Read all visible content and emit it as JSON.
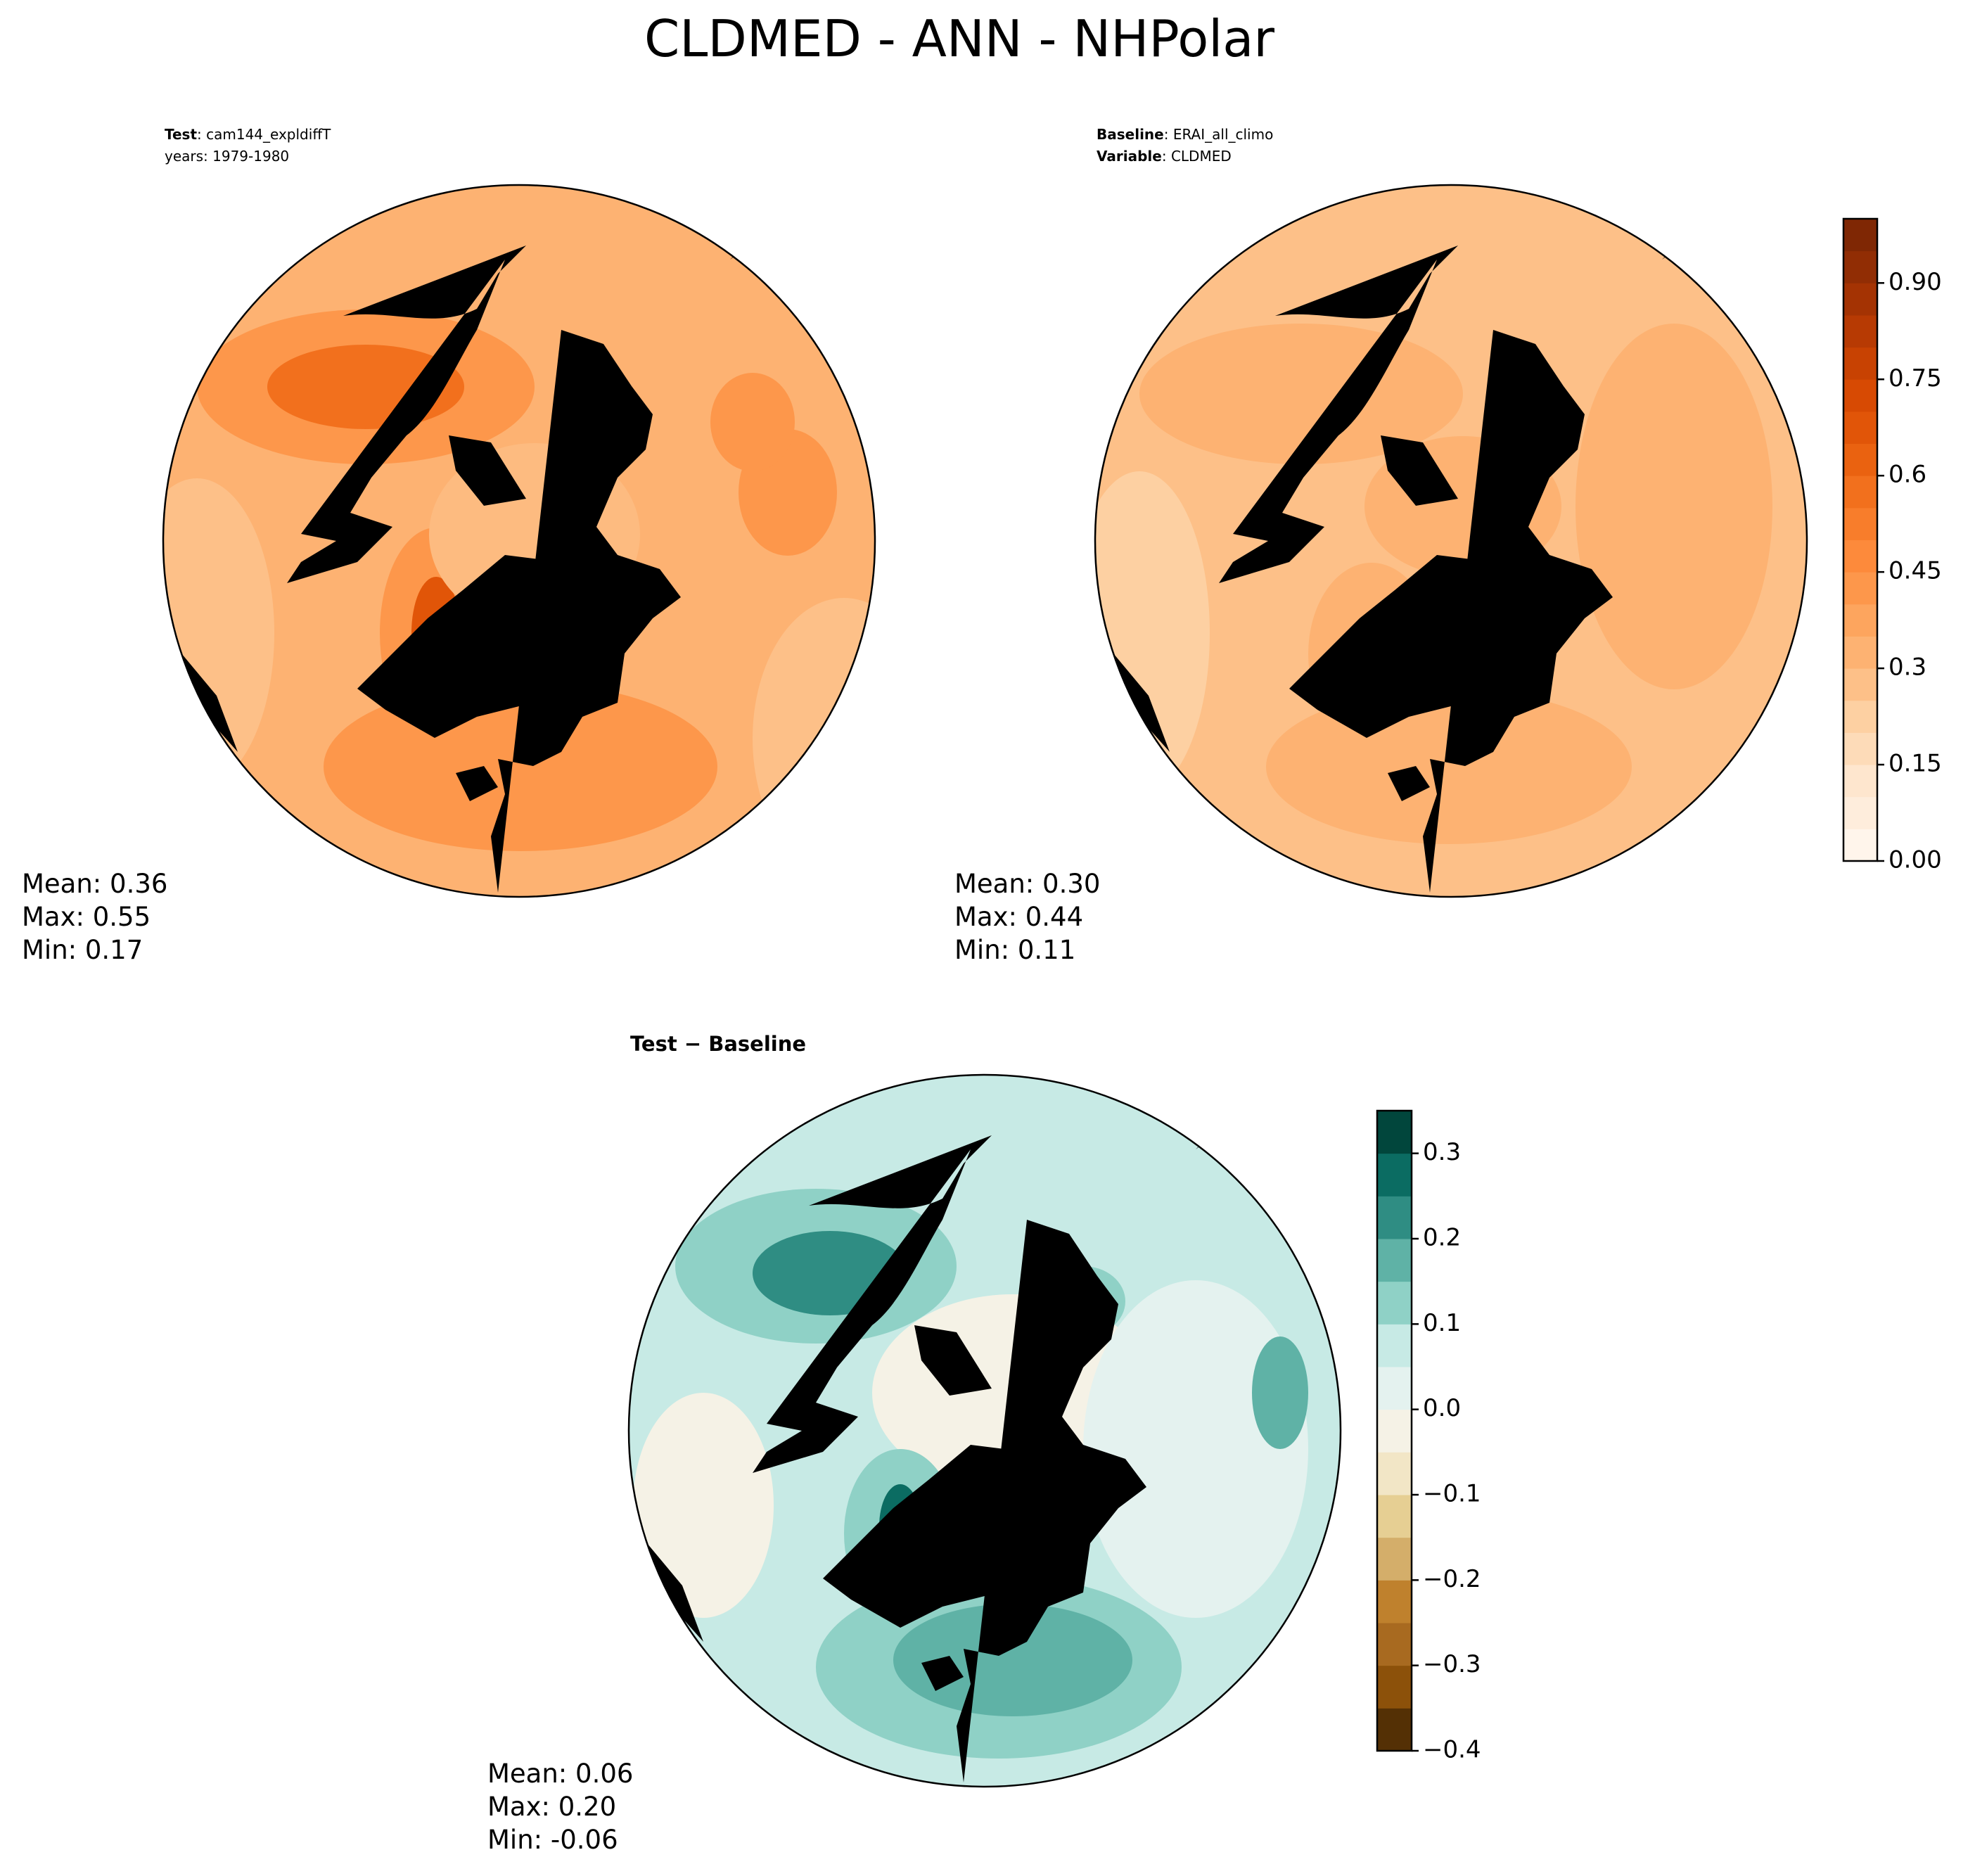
{
  "title": "CLDMED - ANN - NHPolar",
  "panels": [
    {
      "header": [
        {
          "label": "Test",
          "text": ": cam144_expldiffT"
        },
        {
          "text": "years: 1979-1980"
        }
      ],
      "stats": [
        "Mean:  0.36",
        "Max:  0.55",
        "Min:  0.17"
      ]
    },
    {
      "header": [
        {
          "label": "Baseline",
          "text": ": ERAI_all_climo"
        },
        {
          "label": "Variable",
          "text": ": CLDMED"
        }
      ],
      "stats": [
        "Mean:  0.30",
        "Max:  0.44",
        "Min:  0.11"
      ]
    },
    {
      "header": [
        {
          "label": "Test",
          "text": " − Baseline"
        }
      ],
      "stats": [
        "Mean:  0.06",
        "Max:  0.20",
        "Min: -0.06"
      ]
    }
  ],
  "colorbars": [
    {
      "lim": [
        0,
        1.0
      ],
      "ticks": [
        {
          "value": 0,
          "label": "0.00"
        },
        0.15,
        0.3,
        0.45,
        0.6,
        0.75,
        {
          "value": 0.9,
          "label": "0.90"
        }
      ],
      "colors": [
        "#fff5eb",
        "#feeddc",
        "#fee6ce",
        "#fddbb8",
        "#fdd0a2",
        "#fdc088",
        "#fdb272",
        "#fda55e",
        "#fd974b",
        "#fd8a3b",
        "#f87d2b",
        "#f2701d",
        "#ea6210",
        "#e15508",
        "#d74a03",
        "#c84202",
        "#b73a03",
        "#a43303",
        "#912d04",
        "#7f2704"
      ]
    },
    {
      "lim": [
        -0.4,
        0.35
      ],
      "ticks": [
        {
          "value": -0.4,
          "label": "−0.4"
        },
        {
          "value": -0.3,
          "label": "−0.3"
        },
        {
          "value": -0.2,
          "label": "−0.2"
        },
        {
          "value": -0.1,
          "label": "−0.1"
        },
        {
          "value": 0,
          "label": "0.0"
        },
        0.1,
        0.2,
        0.3
      ],
      "colors": [
        "#543005",
        "#8c510a",
        "#a86a20",
        "#bf812d",
        "#d4ae6a",
        "#e6cf93",
        "#f2e6c6",
        "#f5f2e6",
        "#e4f2ef",
        "#c7eae5",
        "#8fd1c6",
        "#5fb2a6",
        "#2f8d83",
        "#0b6c62",
        "#01463c"
      ]
    }
  ]
}
